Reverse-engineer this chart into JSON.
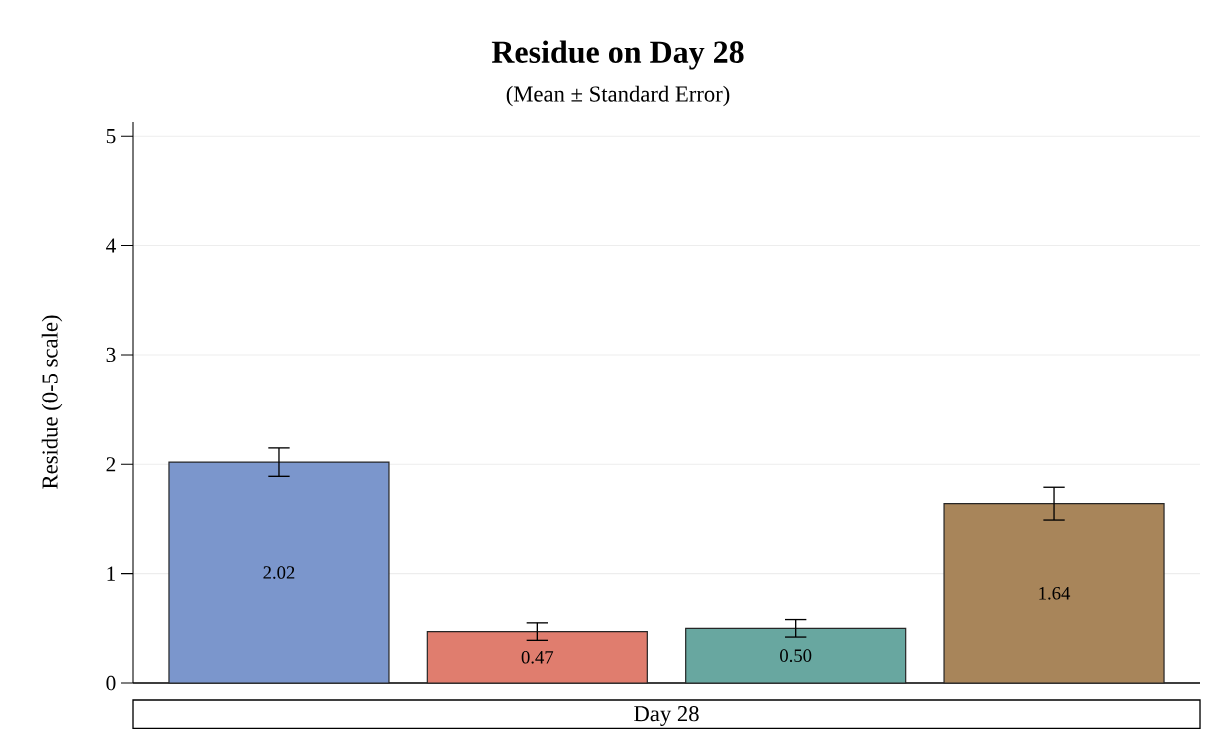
{
  "chart_data": {
    "type": "bar",
    "title": "Residue on Day 28",
    "subtitle": "(Mean ± Standard Error)",
    "ylabel": "Residue (0-5 scale)",
    "xlabel": "Day 28",
    "categories": [
      null,
      null,
      null,
      null
    ],
    "values": [
      2.02,
      0.47,
      0.5,
      1.64
    ],
    "value_labels": [
      "2.02",
      "0.47",
      "0.50",
      "1.64"
    ],
    "errors": [
      0.13,
      0.08,
      0.08,
      0.15
    ],
    "colors": [
      "#7b96cc",
      "#e07d6e",
      "#68a7a0",
      "#a8855a"
    ],
    "ylim": [
      0,
      5.13
    ],
    "yticks": [
      0,
      1,
      2,
      3,
      4,
      5
    ],
    "grid": "y"
  }
}
